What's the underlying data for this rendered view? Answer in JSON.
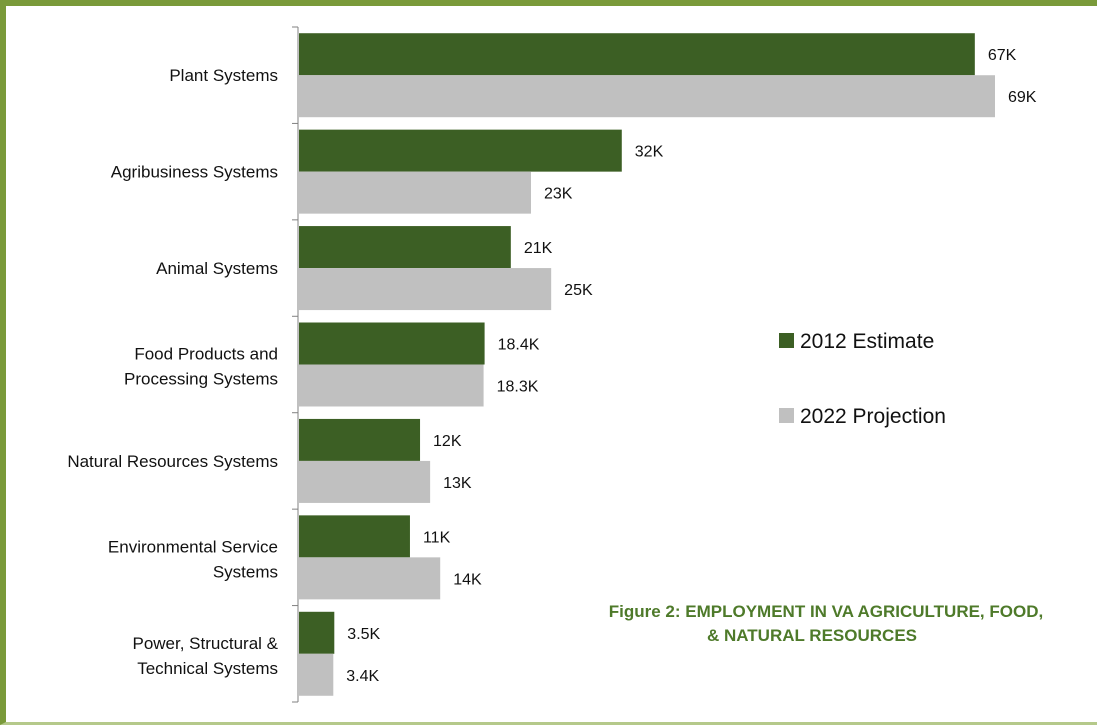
{
  "chart_data": {
    "type": "bar",
    "orientation": "horizontal",
    "title_lines": [
      "Figure 2:  EMPLOYMENT IN VA AGRICULTURE, FOOD,",
      "& NATURAL RESOURCES"
    ],
    "categories": [
      [
        "Plant Systems"
      ],
      [
        "Agribusiness Systems"
      ],
      [
        "Animal Systems"
      ],
      [
        "Food Products and",
        "Processing Systems"
      ],
      [
        "Natural Resources Systems"
      ],
      [
        "Environmental Service",
        "Systems"
      ],
      [
        "Power, Structural &",
        "Technical Systems"
      ]
    ],
    "series": [
      {
        "name": "2012 Estimate",
        "color": "#3c5f24",
        "values": [
          67000,
          32000,
          21000,
          18400,
          12000,
          11000,
          3500
        ],
        "labels": [
          "67K",
          "32K",
          "21K",
          "18.4K",
          "12K",
          "11K",
          "3.5K"
        ]
      },
      {
        "name": "2022 Projection",
        "color": "#c0c0c0",
        "values": [
          69000,
          23000,
          25000,
          18300,
          13000,
          14000,
          3400
        ],
        "labels": [
          "69K",
          "23K",
          "25K",
          "18.3K",
          "13K",
          "14K",
          "3.4K"
        ]
      }
    ],
    "xlim": [
      0,
      69000
    ],
    "grid": false,
    "legend": "right"
  }
}
